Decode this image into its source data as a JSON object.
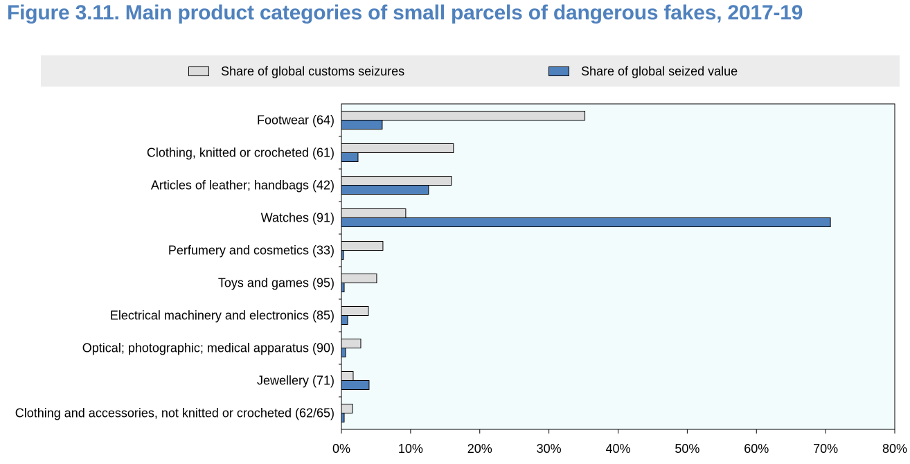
{
  "title": "Figure 3.11. Main product categories of small parcels of dangerous fakes, 2017-19",
  "chart_data": {
    "type": "bar",
    "orientation": "horizontal",
    "categories": [
      "Footwear (64)",
      "Clothing, knitted or crocheted (61)",
      "Articles of leather; handbags (42)",
      "Watches (91)",
      "Perfumery and cosmetics (33)",
      "Toys and games (95)",
      "Electrical machinery and electronics (85)",
      "Optical; photographic; medical apparatus (90)",
      "Jewellery (71)",
      "Clothing and accessories, not knitted or crocheted (62/65)"
    ],
    "series": [
      {
        "name": "Share of global customs seizures",
        "color": "#dcdcdc",
        "values": [
          35.2,
          16.2,
          15.9,
          9.3,
          6.0,
          5.1,
          3.9,
          2.8,
          1.7,
          1.6
        ]
      },
      {
        "name": "Share of global seized value",
        "color": "#4f81bd",
        "values": [
          5.9,
          2.4,
          12.6,
          70.7,
          0.3,
          0.4,
          0.9,
          0.6,
          4.0,
          0.4
        ]
      }
    ],
    "xlim": [
      0,
      80
    ],
    "xticks": [
      0,
      10,
      20,
      30,
      40,
      50,
      60,
      70,
      80
    ],
    "tick_suffix": "%",
    "legend_position": "top",
    "plot_background": "#f3fcfd",
    "grid": false
  }
}
